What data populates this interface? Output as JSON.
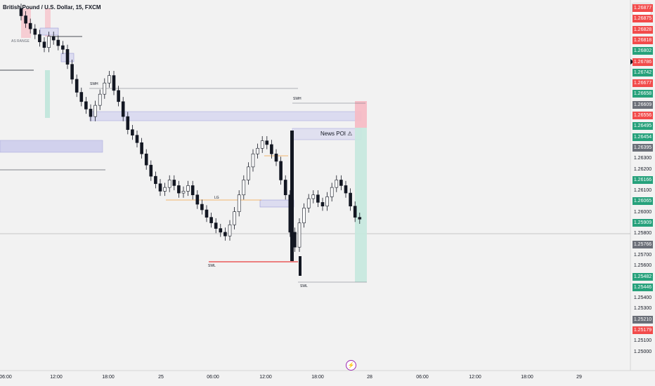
{
  "symbol_title": "British Pound / U.S. Dollar, 15, FXCM",
  "currency": "USD",
  "annotations": {
    "as_range": "AS RANGE",
    "swh_left": "SWH",
    "swh_right": "SWH",
    "swl_left": "SWL",
    "swl_right": "SWL",
    "lg": "LG",
    "news_poi": "News POI ⚠"
  },
  "price_labels": [
    {
      "text": "1.26877",
      "color": "#f24b4b"
    },
    {
      "text": "1.26875",
      "color": "#f24b4b"
    },
    {
      "text": "1.26828",
      "color": "#f24b4b"
    },
    {
      "text": "1.26818",
      "color": "#f24b4b"
    },
    {
      "text": "1.26802",
      "color": "#26a17b"
    },
    {
      "text": "1.26786",
      "color": "#f24b4b"
    },
    {
      "text": "1.26742",
      "color": "#26a17b"
    },
    {
      "text": "1.26677",
      "color": "#f24b4b"
    },
    {
      "text": "1.26658",
      "color": "#26a17b"
    },
    {
      "text": "1.26609",
      "color": "#6b6f78"
    },
    {
      "text": "1.26556",
      "color": "#f24b4b"
    },
    {
      "text": "1.26495",
      "color": "#26a17b"
    },
    {
      "text": "1.26454",
      "color": "#26a17b"
    },
    {
      "text": "1.26395",
      "color": "#6b6f78"
    },
    {
      "text": "1.26300",
      "color": ""
    },
    {
      "text": "1.26200",
      "color": ""
    },
    {
      "text": "1.26166",
      "color": "#26a17b"
    },
    {
      "text": "1.26100",
      "color": ""
    },
    {
      "text": "1.26065",
      "color": "#26a17b"
    },
    {
      "text": "1.26000",
      "color": ""
    },
    {
      "text": "1.25909",
      "color": "#26a17b"
    },
    {
      "text": "1.25800",
      "color": ""
    },
    {
      "text": "1.25766",
      "color": "#6b6f78"
    },
    {
      "text": "1.25700",
      "color": ""
    },
    {
      "text": "1.25600",
      "color": ""
    },
    {
      "text": "1.25482",
      "color": "#26a17b"
    },
    {
      "text": "1.25446",
      "color": "#26a17b"
    },
    {
      "text": "1.25400",
      "color": ""
    },
    {
      "text": "1.25300",
      "color": ""
    },
    {
      "text": "1.25210",
      "color": "#6b6f78"
    },
    {
      "text": "1.25179",
      "color": "#f24b4b"
    },
    {
      "text": "1.25100",
      "color": ""
    },
    {
      "text": "1.25000",
      "color": ""
    }
  ],
  "time_ticks": [
    "06:00",
    "12:00",
    "18:00",
    "25",
    "06:00",
    "12:00",
    "18:00",
    "28",
    "06:00",
    "12:00",
    "18:00",
    "29"
  ],
  "colors": {
    "up": "#26a69a",
    "down": "#131722",
    "bear_zone": "#f24b4b",
    "bull_zone": "#26a17b",
    "poi": "#9c9cd8"
  },
  "chart_data": {
    "type": "candlestick",
    "series_close": [
      1.2686,
      1.2682,
      1.2679,
      1.2676,
      1.2672,
      1.2669,
      1.2675,
      1.2673,
      1.267,
      1.2668,
      1.266,
      1.2652,
      1.2645,
      1.264,
      1.2636,
      1.2632,
      1.2638,
      1.2644,
      1.265,
      1.2654,
      1.2646,
      1.264,
      1.2632,
      1.2625,
      1.2622,
      1.2618,
      1.2612,
      1.2606,
      1.26,
      1.2596,
      1.2592,
      1.2594,
      1.2598,
      1.2595,
      1.2591,
      1.2592,
      1.2595,
      1.259,
      1.2585,
      1.2582,
      1.2578,
      1.2575,
      1.2572,
      1.257,
      1.2568,
      1.2574,
      1.2581,
      1.259,
      1.2598,
      1.2605,
      1.2612,
      1.2615,
      1.2619,
      1.2617,
      1.2612,
      1.2608,
      1.2598,
      1.259,
      1.257,
      1.2562,
      1.2575,
      1.2583,
      1.2588,
      1.259,
      1.2586,
      1.2584,
      1.2589,
      1.2594,
      1.2598,
      1.2595,
      1.2591,
      1.2584,
      1.2578,
      1.2577
    ]
  }
}
